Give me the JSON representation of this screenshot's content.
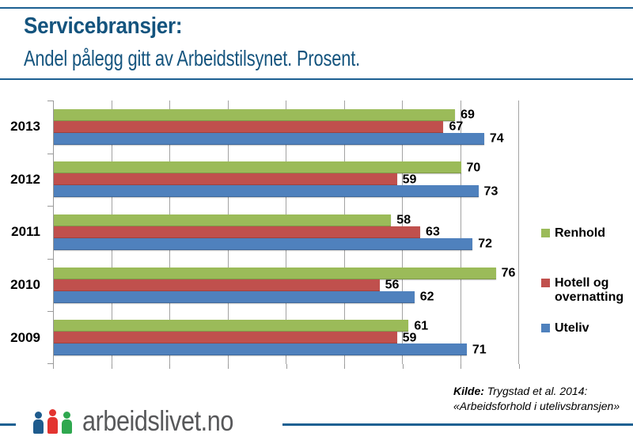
{
  "header": {
    "title_line1": "Servicebransjer:",
    "title_line2": "Andel pålegg gitt av Arbeidstilsynet. Prosent."
  },
  "chart_data": {
    "type": "bar",
    "orientation": "horizontal",
    "title": "Servicebransjer: Andel pålegg gitt av Arbeidstilsynet. Prosent.",
    "categories": [
      "2013",
      "2012",
      "2011",
      "2010",
      "2009"
    ],
    "series": [
      {
        "name": "Renhold",
        "color": "#9BBB59",
        "values": [
          69,
          70,
          58,
          76,
          61
        ]
      },
      {
        "name": "Hotell og overnatting",
        "color": "#C0504D",
        "values": [
          67,
          59,
          63,
          56,
          59
        ]
      },
      {
        "name": "Uteliv",
        "color": "#4F81BD",
        "values": [
          74,
          73,
          72,
          62,
          71
        ]
      }
    ],
    "xlim": [
      0,
      80
    ],
    "grid_interval": 10,
    "grid": true,
    "legend_position": "right",
    "value_labels": true,
    "xlabel": "",
    "ylabel": ""
  },
  "source": {
    "label": "Kilde:",
    "text": "Trygstad et al. 2014:",
    "line2": "«Arbeidsforhold i utelivsbransjen»"
  },
  "footer": {
    "logo_text": "arbeidslivet.no"
  },
  "colors": {
    "accent_blue": "#1D6092",
    "title_text": "#14547E",
    "gridline": "#A3A3A3",
    "axis": "#9A9A9A",
    "logo_text": "#57585A",
    "logo_person_blue": "#1E5B8D",
    "logo_person_red": "#E33430",
    "logo_person_green": "#2FA84F"
  }
}
